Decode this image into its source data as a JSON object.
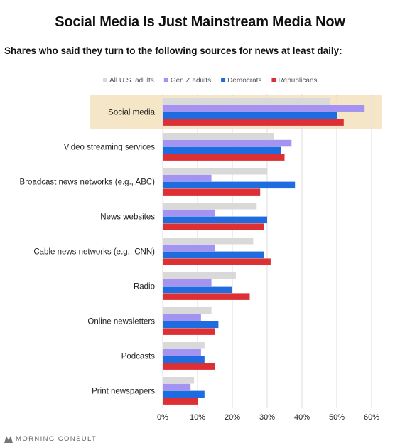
{
  "header": {
    "title": "Social Media Is Just Mainstream Media Now",
    "subtitle": "Shares who said they turn to the following sources for news at least daily:"
  },
  "brand": {
    "name": "MORNING CONSULT"
  },
  "colors": {
    "all_adults": "#d9d9d9",
    "gen_z": "#a593f2",
    "democrats": "#1f6be0",
    "republicans": "#dc3035",
    "highlight": "#f6e6c8",
    "grid": "#dddddd",
    "text": "#222222"
  },
  "chart_data": {
    "type": "bar",
    "orientation": "horizontal",
    "categories": [
      "Social media",
      "Video streaming services",
      "Broadcast news networks (e.g., ABC)",
      "News websites",
      "Cable news networks (e.g., CNN)",
      "Radio",
      "Online newsletters",
      "Podcasts",
      "Print newspapers"
    ],
    "highlighted_category": "Social media",
    "series": [
      {
        "name": "All U.S. adults",
        "color": "#d9d9d9",
        "values": [
          48,
          32,
          30,
          27,
          26,
          21,
          14,
          12,
          9
        ]
      },
      {
        "name": "Gen Z adults",
        "color": "#a593f2",
        "values": [
          58,
          37,
          14,
          15,
          15,
          14,
          11,
          11,
          8
        ]
      },
      {
        "name": "Democrats",
        "color": "#1f6be0",
        "values": [
          50,
          34,
          38,
          30,
          29,
          20,
          16,
          12,
          12
        ]
      },
      {
        "name": "Republicans",
        "color": "#dc3035",
        "values": [
          52,
          35,
          28,
          29,
          31,
          25,
          15,
          15,
          10
        ]
      }
    ],
    "xlim": [
      0,
      60
    ],
    "xticks": [
      0,
      10,
      20,
      30,
      40,
      50,
      60
    ],
    "xtick_labels": [
      "0%",
      "10%",
      "20%",
      "30%",
      "40%",
      "50%",
      "60%"
    ],
    "grid": true,
    "legend_position": "top"
  }
}
